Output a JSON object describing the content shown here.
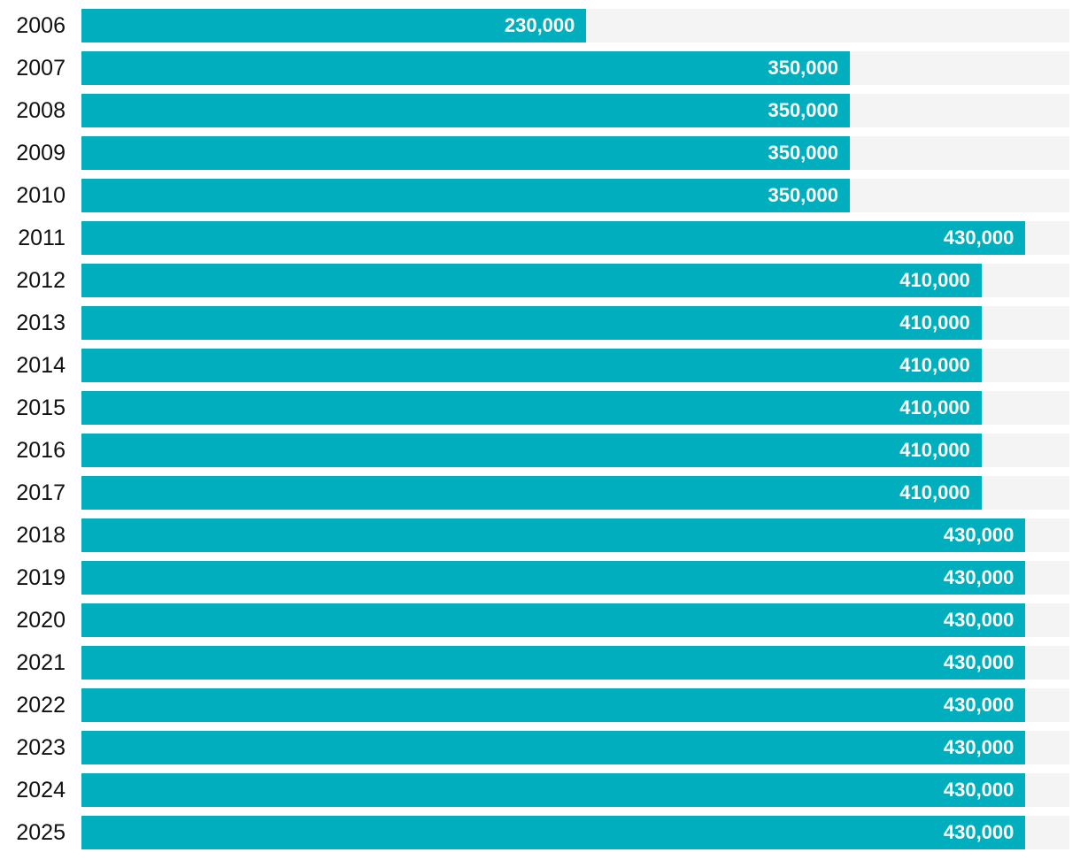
{
  "chart_data": {
    "type": "bar",
    "orientation": "horizontal",
    "title": "",
    "xlabel": "",
    "ylabel": "",
    "xlim": [
      0,
      450000
    ],
    "grid": false,
    "legend": false,
    "bar_color": "#00AEBE",
    "track_color": "#F4F4F4",
    "background_color": "#FFFFFF",
    "label_color": "#111111",
    "value_label_color": "#FFFFFF",
    "categories": [
      "2006",
      "2007",
      "2008",
      "2009",
      "2010",
      "2011",
      "2012",
      "2013",
      "2014",
      "2015",
      "2016",
      "2017",
      "2018",
      "2019",
      "2020",
      "2021",
      "2022",
      "2023",
      "2024",
      "2025"
    ],
    "values": [
      230000,
      350000,
      350000,
      350000,
      350000,
      430000,
      410000,
      410000,
      410000,
      410000,
      410000,
      410000,
      430000,
      430000,
      430000,
      430000,
      430000,
      430000,
      430000,
      430000
    ],
    "value_labels": [
      "230,000",
      "350,000",
      "350,000",
      "350,000",
      "350,000",
      "430,000",
      "410,000",
      "410,000",
      "410,000",
      "410,000",
      "410,000",
      "410,000",
      "430,000",
      "430,000",
      "430,000",
      "430,000",
      "430,000",
      "430,000",
      "430,000",
      "430,000"
    ]
  }
}
